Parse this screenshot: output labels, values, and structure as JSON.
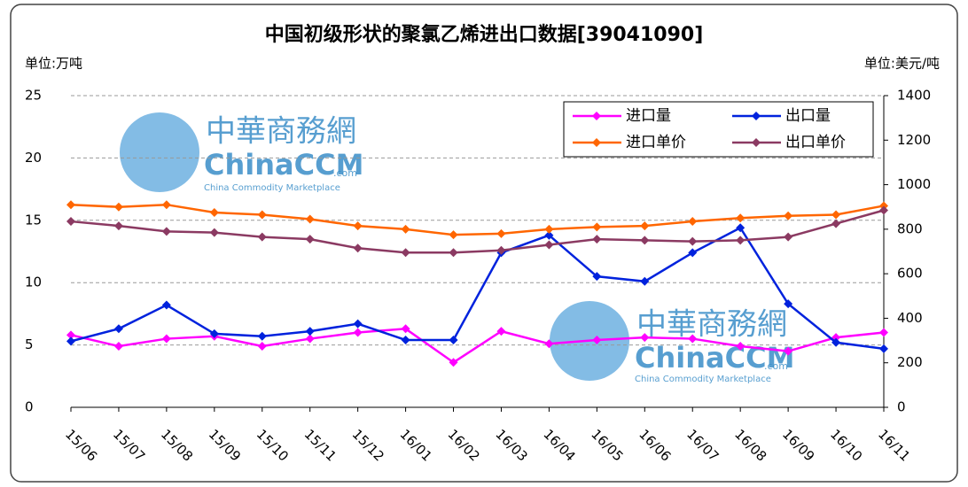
{
  "chart_data": {
    "type": "line",
    "title": "中国初级形状的聚氯乙烯进出口数据[39041090]",
    "y_unit": "单位:万吨",
    "y2_unit": "单位:美元/吨",
    "watermark": {
      "cn": "中華商務網",
      "en": "ChinaCCM",
      "domain": ".com",
      "tagline": "China Commodity Marketplace"
    },
    "categories": [
      "15/06",
      "15/07",
      "15/08",
      "15/09",
      "15/10",
      "15/11",
      "15/12",
      "16/01",
      "16/02",
      "16/03",
      "16/04",
      "16/05",
      "16/06",
      "16/07",
      "16/08",
      "16/09",
      "16/10",
      "16/11"
    ],
    "ylim": [
      0,
      25
    ],
    "yticks": [
      0,
      5,
      10,
      15,
      20,
      25
    ],
    "y2lim": [
      0,
      1400
    ],
    "y2ticks": [
      0,
      200,
      400,
      600,
      800,
      1000,
      1200,
      1400
    ],
    "grid": true,
    "legend": "top-right",
    "series": [
      {
        "name": "进口量",
        "color": "#ff00ff",
        "values": [
          5.8,
          4.9,
          5.5,
          5.7,
          4.9,
          5.5,
          6.0,
          6.3,
          3.6,
          6.1,
          5.1,
          5.4,
          5.6,
          5.5,
          4.9,
          4.5,
          5.6,
          6.0
        ]
      },
      {
        "name": "出口量",
        "color": "#0022dd",
        "values": [
          5.3,
          6.3,
          8.2,
          5.9,
          5.7,
          6.1,
          6.7,
          5.4,
          5.4,
          12.4,
          13.8,
          10.5,
          10.1,
          12.4,
          14.4,
          8.3,
          5.2,
          4.7
        ]
      },
      {
        "name": "进口单价",
        "color": "#ff6600",
        "axis": "y2",
        "values": [
          910,
          900,
          910,
          875,
          865,
          845,
          815,
          800,
          775,
          780,
          800,
          810,
          815,
          835,
          850,
          860,
          865,
          905
        ]
      },
      {
        "name": "出口单价",
        "color": "#8b3a62",
        "axis": "y2",
        "values": [
          835,
          815,
          790,
          785,
          765,
          755,
          715,
          695,
          695,
          705,
          730,
          755,
          750,
          745,
          750,
          765,
          825,
          885
        ]
      }
    ]
  }
}
